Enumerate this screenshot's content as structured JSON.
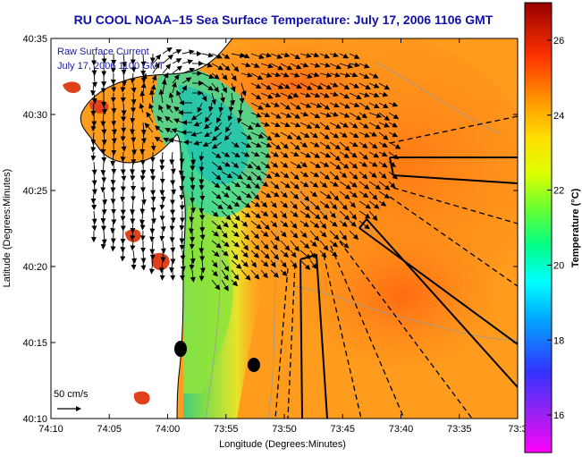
{
  "chart_data": {
    "type": "heatmap",
    "title": "RU COOL  NOAA–15  Sea Surface Temperature:  July 17, 2006 1106 GMT",
    "xlabel": "Longitude (Degrees:Minutes)",
    "ylabel": "Latitude (Degrees:Minutes)",
    "x_ticks": [
      "74:10",
      "74:05",
      "74:00",
      "73:55",
      "73:50",
      "73:45",
      "73:40",
      "73:35",
      "73:3"
    ],
    "y_ticks": [
      "40:10",
      "40:15",
      "40:20",
      "40:25",
      "40:30",
      "40:35"
    ],
    "colorbar": {
      "label": "Temperature (°C)",
      "ticks": [
        "16",
        "18",
        "20",
        "22",
        "24",
        "26"
      ],
      "range": [
        15,
        27
      ]
    },
    "legend": {
      "line1": "Raw Surface Current",
      "line2": "July 17, 2006 1100 GMT"
    },
    "scale_label": "50 cm/s",
    "grid": false
  }
}
